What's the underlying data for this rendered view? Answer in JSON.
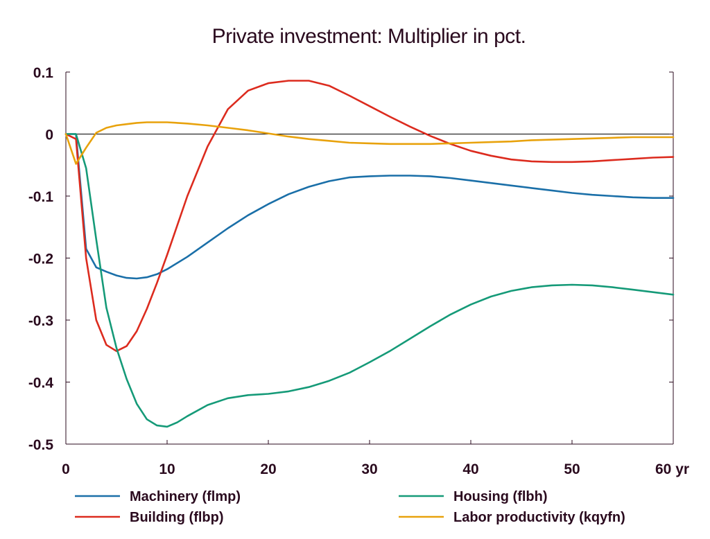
{
  "chart_data": {
    "type": "line",
    "title": "Private investment: Multiplier in pct.",
    "xlabel": "",
    "ylabel": "",
    "xlim": [
      0,
      60
    ],
    "ylim": [
      -0.5,
      0.1
    ],
    "x_ticks": [
      0,
      10,
      20,
      30,
      40,
      50,
      60
    ],
    "x_tick_labels": [
      "0",
      "10",
      "20",
      "30",
      "40",
      "50",
      "60 yr"
    ],
    "y_ticks": [
      0.1,
      0,
      -0.1,
      -0.2,
      -0.3,
      -0.4,
      -0.5
    ],
    "y_tick_labels": [
      "0.1",
      "0",
      "-0.1",
      "-0.2",
      "-0.3",
      "-0.4",
      "-0.5"
    ],
    "grid": false,
    "zero_line": true,
    "legend_position": "bottom",
    "series": [
      {
        "name": "Machinery (flmp)",
        "color": "#1a6fa8",
        "x": [
          0,
          1,
          2,
          3,
          4,
          5,
          6,
          7,
          8,
          9,
          10,
          12,
          14,
          16,
          18,
          20,
          22,
          24,
          26,
          28,
          30,
          32,
          34,
          36,
          38,
          40,
          42,
          44,
          46,
          48,
          50,
          52,
          54,
          56,
          58,
          60
        ],
        "y": [
          0,
          0,
          -0.185,
          -0.215,
          -0.222,
          -0.228,
          -0.232,
          -0.233,
          -0.231,
          -0.226,
          -0.218,
          -0.198,
          -0.175,
          -0.152,
          -0.131,
          -0.113,
          -0.097,
          -0.085,
          -0.076,
          -0.07,
          -0.068,
          -0.067,
          -0.067,
          -0.068,
          -0.071,
          -0.075,
          -0.079,
          -0.083,
          -0.087,
          -0.091,
          -0.095,
          -0.098,
          -0.1,
          -0.102,
          -0.103,
          -0.103
        ]
      },
      {
        "name": "Building (flbp)",
        "color": "#dc2b1e",
        "x": [
          0,
          1,
          2,
          3,
          4,
          5,
          6,
          7,
          8,
          9,
          10,
          12,
          14,
          16,
          18,
          20,
          22,
          24,
          26,
          28,
          30,
          32,
          34,
          36,
          38,
          40,
          42,
          44,
          46,
          48,
          50,
          52,
          54,
          56,
          58,
          60
        ],
        "y": [
          0,
          -0.008,
          -0.2,
          -0.3,
          -0.34,
          -0.35,
          -0.342,
          -0.318,
          -0.282,
          -0.24,
          -0.195,
          -0.1,
          -0.02,
          0.04,
          0.07,
          0.082,
          0.086,
          0.086,
          0.078,
          0.062,
          0.045,
          0.028,
          0.012,
          -0.003,
          -0.016,
          -0.027,
          -0.035,
          -0.041,
          -0.044,
          -0.045,
          -0.045,
          -0.044,
          -0.042,
          -0.04,
          -0.038,
          -0.037
        ]
      },
      {
        "name": "Housing (flbh)",
        "color": "#159a78",
        "x": [
          0,
          1,
          2,
          3,
          4,
          5,
          6,
          7,
          8,
          9,
          10,
          11,
          12,
          14,
          16,
          18,
          20,
          22,
          24,
          26,
          28,
          30,
          32,
          34,
          36,
          38,
          40,
          42,
          44,
          46,
          48,
          50,
          52,
          54,
          56,
          58,
          60
        ],
        "y": [
          0,
          0,
          -0.055,
          -0.17,
          -0.28,
          -0.345,
          -0.395,
          -0.435,
          -0.46,
          -0.47,
          -0.472,
          -0.465,
          -0.455,
          -0.437,
          -0.426,
          -0.421,
          -0.419,
          -0.415,
          -0.408,
          -0.398,
          -0.385,
          -0.368,
          -0.35,
          -0.33,
          -0.31,
          -0.291,
          -0.275,
          -0.262,
          -0.253,
          -0.247,
          -0.244,
          -0.243,
          -0.244,
          -0.247,
          -0.251,
          -0.255,
          -0.259
        ]
      },
      {
        "name": "Labor productivity (kqyfn)",
        "color": "#e8a20c",
        "x": [
          0,
          1,
          2,
          3,
          4,
          5,
          6,
          7,
          8,
          9,
          10,
          12,
          14,
          16,
          18,
          20,
          22,
          24,
          26,
          28,
          30,
          32,
          34,
          36,
          38,
          40,
          42,
          44,
          46,
          48,
          50,
          52,
          54,
          56,
          58,
          60
        ],
        "y": [
          0,
          -0.048,
          -0.022,
          0.002,
          0.01,
          0.014,
          0.016,
          0.018,
          0.019,
          0.019,
          0.019,
          0.017,
          0.014,
          0.01,
          0.006,
          0.001,
          -0.004,
          -0.008,
          -0.011,
          -0.014,
          -0.015,
          -0.016,
          -0.016,
          -0.016,
          -0.015,
          -0.014,
          -0.013,
          -0.012,
          -0.01,
          -0.009,
          -0.008,
          -0.007,
          -0.006,
          -0.005,
          -0.005,
          -0.005
        ]
      }
    ]
  }
}
